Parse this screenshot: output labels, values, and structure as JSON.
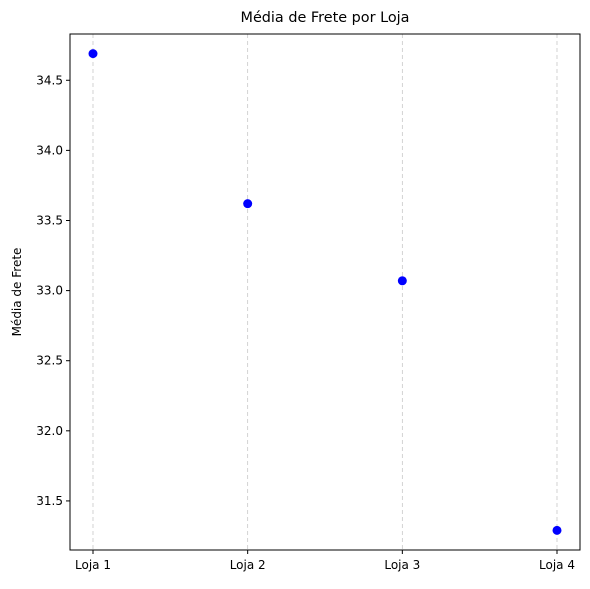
{
  "chart_data": {
    "type": "scatter",
    "title": "Média de Frete por Loja",
    "xlabel": "",
    "ylabel": "Média de Frete",
    "categories": [
      "Loja 1",
      "Loja 2",
      "Loja 3",
      "Loja 4"
    ],
    "series": [
      {
        "values": [
          34.69,
          33.62,
          33.07,
          31.29
        ],
        "color": "#0000ff"
      }
    ],
    "ylim": [
      31.15,
      34.83
    ],
    "yticks": [
      31.5,
      32.0,
      32.5,
      33.0,
      33.5,
      34.0,
      34.5
    ],
    "ytick_labels": [
      "31.5",
      "32.0",
      "32.5",
      "33.0",
      "33.5",
      "34.0",
      "34.5"
    ],
    "grid": {
      "axis": "x",
      "style": "dashed",
      "color": "#c8c8c8"
    },
    "legend": "none"
  }
}
